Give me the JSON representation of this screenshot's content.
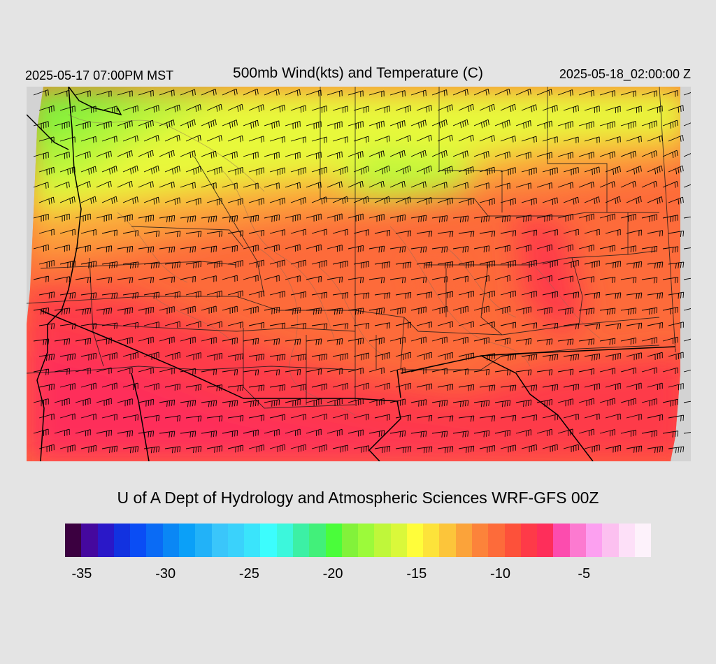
{
  "header": {
    "valid_local": "2025-05-17 07:00PM MST",
    "title": "500mb Wind(kts) and Temperature (C)",
    "valid_utc": "2025-05-18_02:00:00 Z"
  },
  "credit": "U of A Dept of Hydrology and Atmospheric Sciences WRF-GFS 00Z",
  "colorbar": {
    "range": [
      -36,
      -1
    ],
    "colors": [
      "#3b0040",
      "#45089e",
      "#2a18c8",
      "#1232e0",
      "#0a4df5",
      "#0a6bf5",
      "#0a87f5",
      "#0ba0f8",
      "#22b2f8",
      "#3ac6fa",
      "#3ad2fb",
      "#3ae4fb",
      "#3cfdfd",
      "#3cf7dc",
      "#3cf0a5",
      "#42f07a",
      "#4afd3a",
      "#82f23a",
      "#9cfa3a",
      "#bff73a",
      "#daf83a",
      "#fffd3a",
      "#fde33a",
      "#fcc53a",
      "#fba33a",
      "#fc833a",
      "#fd6b3a",
      "#fd513a",
      "#fe3a48",
      "#fe2e5a",
      "#fc4cae",
      "#fc7ad0",
      "#fca0f0",
      "#fcc0f0",
      "#fde0f8",
      "#fdf2fb"
    ],
    "tick_labels": [
      "-35",
      "-30",
      "-25",
      "-20",
      "-15",
      "-10",
      "-5"
    ],
    "tick_values": [
      -35,
      -30,
      -25,
      -20,
      -15,
      -10,
      -5
    ]
  },
  "map": {
    "field": "500mb temperature (C) with wind barbs (kts)",
    "fill_colors": {
      "cold_green": "#82f23a",
      "yellow": "#e8f83a",
      "orange": "#fba33a",
      "red_orange": "#fd6b3a",
      "red": "#fe3a48",
      "pink_red": "#fe2e5a",
      "outside_domain": "#d3d3d3"
    }
  }
}
